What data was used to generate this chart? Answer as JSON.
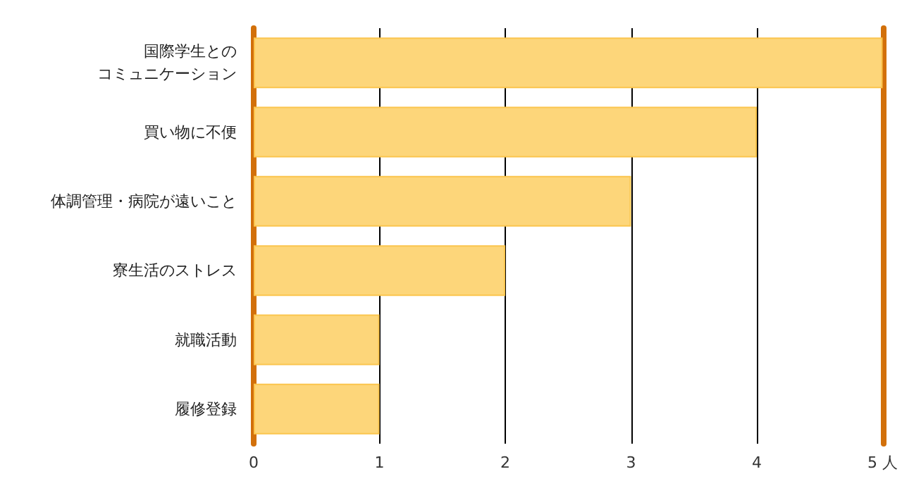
{
  "chart_data": {
    "type": "bar",
    "orientation": "horizontal",
    "categories": [
      "国際学生とのコミュニケーション",
      "買い物に不便",
      "体調管理・病院が遠いこと",
      "寮生活のストレス",
      "就職活動",
      "履修登録"
    ],
    "values": [
      5,
      4,
      3,
      2,
      1,
      1
    ],
    "color": "#fdd67a",
    "xlim": [
      0,
      5
    ],
    "xticks": [
      0,
      1,
      2,
      3,
      4,
      {
        "value": 5,
        "label": "5 人"
      }
    ],
    "grid": "x"
  }
}
